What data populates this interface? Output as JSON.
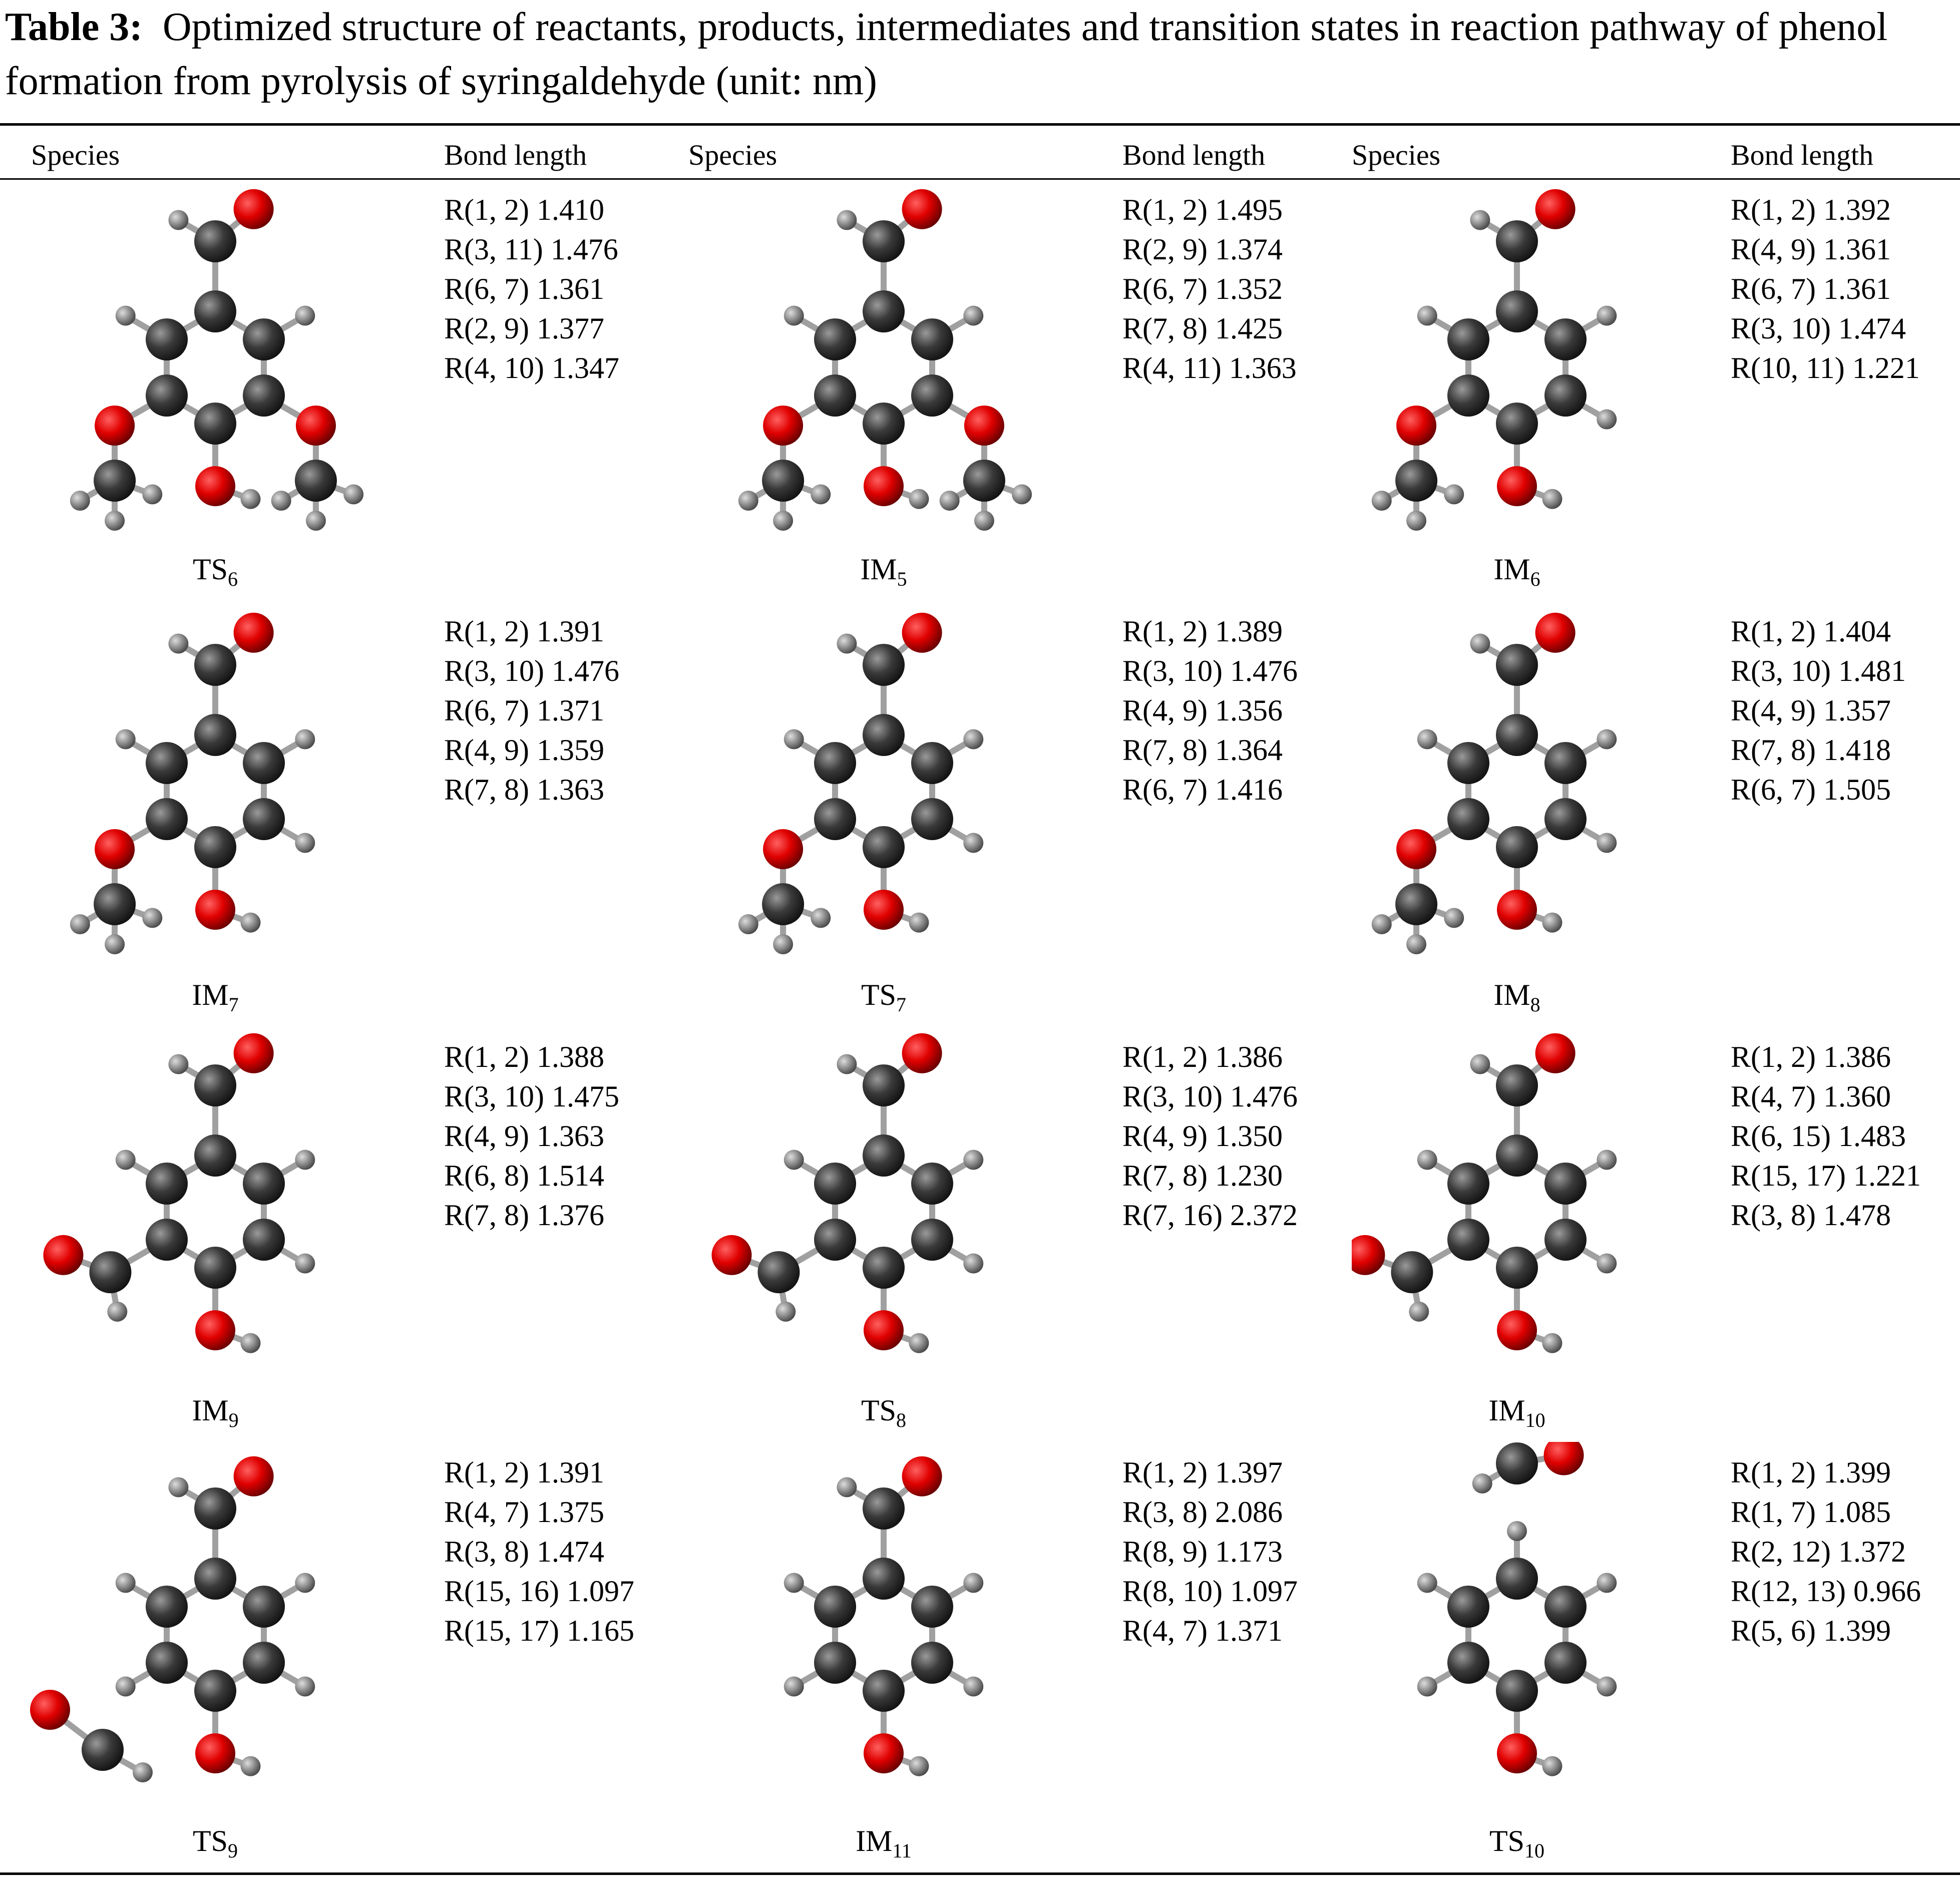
{
  "title": {
    "label": "Table 3:",
    "text": "Optimized structure of reactants, products, intermediates and transition states in reaction pathway of phenol formation from pyrolysis of syringaldehyde (unit: nm)"
  },
  "headers": [
    "Species",
    "Bond length",
    "Species",
    "Bond length",
    "Species",
    "Bond length"
  ],
  "rows": [
    [
      {
        "name": "TS",
        "sub": "6",
        "bonds": [
          "R(1, 2) 1.410",
          "R(3, 11) 1.476",
          "R(6, 7) 1.361",
          "R(2, 9) 1.377",
          "R(4, 10) 1.347"
        ]
      },
      {
        "name": "IM",
        "sub": "5",
        "bonds": [
          "R(1, 2) 1.495",
          "R(2, 9) 1.374",
          "R(6, 7) 1.352",
          "R(7, 8) 1.425",
          "R(4, 11) 1.363"
        ]
      },
      {
        "name": "IM",
        "sub": "6",
        "bonds": [
          "R(1, 2) 1.392",
          "R(4, 9) 1.361",
          "R(6, 7) 1.361",
          "R(3, 10) 1.474",
          "R(10, 11) 1.221"
        ]
      }
    ],
    [
      {
        "name": "IM",
        "sub": "7",
        "bonds": [
          "R(1, 2) 1.391",
          "R(3, 10) 1.476",
          "R(6, 7) 1.371",
          "R(4, 9) 1.359",
          "R(7, 8) 1.363"
        ]
      },
      {
        "name": "TS",
        "sub": "7",
        "bonds": [
          "R(1, 2) 1.389",
          "R(3, 10) 1.476",
          "R(4, 9) 1.356",
          "R(7, 8) 1.364",
          "R(6, 7) 1.416"
        ]
      },
      {
        "name": "IM",
        "sub": "8",
        "bonds": [
          "R(1, 2) 1.404",
          "R(3, 10) 1.481",
          "R(4, 9) 1.357",
          "R(7, 8) 1.418",
          "R(6, 7) 1.505"
        ]
      }
    ],
    [
      {
        "name": "IM",
        "sub": "9",
        "bonds": [
          "R(1, 2) 1.388",
          "R(3, 10) 1.475",
          "R(4, 9) 1.363",
          "R(6, 8) 1.514",
          "R(7, 8) 1.376"
        ]
      },
      {
        "name": "TS",
        "sub": "8",
        "bonds": [
          "R(1, 2) 1.386",
          "R(3, 10) 1.476",
          "R(4, 9) 1.350",
          "R(7, 8) 1.230",
          "R(7, 16) 2.372"
        ]
      },
      {
        "name": "IM",
        "sub": "10",
        "bonds": [
          "R(1, 2) 1.386",
          "R(4, 7) 1.360",
          "R(6, 15) 1.483",
          "R(15, 17) 1.221",
          "R(3, 8) 1.478"
        ]
      }
    ],
    [
      {
        "name": "TS",
        "sub": "9",
        "bonds": [
          "R(1, 2) 1.391",
          "R(4, 7) 1.375",
          "R(3, 8) 1.474",
          "R(15, 16) 1.097",
          "R(15, 17) 1.165"
        ]
      },
      {
        "name": "IM",
        "sub": "11",
        "bonds": [
          "R(1, 2) 1.397",
          "R(3, 8) 2.086",
          "R(8, 9) 1.173",
          "R(8, 10) 1.097",
          "R(4, 7) 1.371"
        ]
      },
      {
        "name": "TS",
        "sub": "10",
        "bonds": [
          "R(1, 2) 1.399",
          "R(1, 7) 1.085",
          "R(2, 12) 1.372",
          "R(12, 13) 0.966",
          "R(5, 6) 1.399"
        ]
      }
    ]
  ],
  "colors": {
    "carbon": "#3a3a3a",
    "oxygen": "#e00000",
    "hydrogen": "#8a8a8a",
    "bond": "#a0a0a0"
  }
}
